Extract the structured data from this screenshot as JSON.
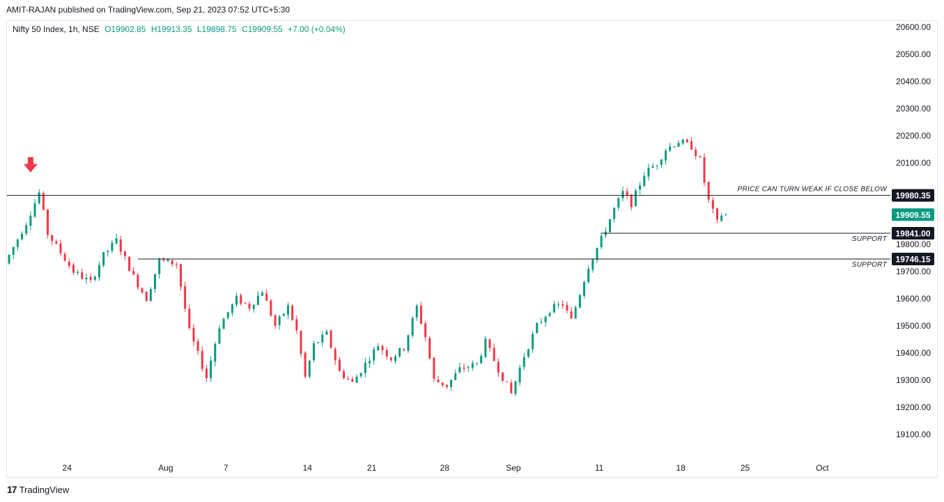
{
  "credit": "AMIT-RAJAN published on TradingView.com, Sep 21, 2023 07:52 UTC+5:30",
  "legend": {
    "symbol": "Nifty 50 Index, 1h, NSE",
    "open": "O19902.85",
    "high": "H19913.35",
    "low": "L19898.75",
    "close": "C19909.55",
    "change": "+7.00 (+0.04%)"
  },
  "brand": "TradingView",
  "colors": {
    "up": "#089981",
    "down": "#f23645",
    "line": "#131722",
    "arrow": "#f23645"
  },
  "chart_data": {
    "type": "candlestick",
    "title": "Nifty 50 Index, 1h, NSE",
    "y_ticks": [
      19100,
      19200,
      19300,
      19400,
      19500,
      19600,
      19700,
      19800,
      19900,
      20000,
      20100,
      20200,
      20300,
      20400,
      20500,
      20600
    ],
    "y_tick_labels": [
      "19100.00",
      "19200.00",
      "19300.00",
      "19400.00",
      "19500.00",
      "19600.00",
      "19700.00",
      "19800.00",
      "19900.00",
      "20000.00",
      "20100.00",
      "20200.00",
      "20300.00",
      "20400.00",
      "20500.00",
      "20600.00"
    ],
    "ylim": [
      19000,
      20640
    ],
    "x_labels": [
      "24",
      "Aug",
      "7",
      "14",
      "21",
      "28",
      "Sep",
      "11",
      "18",
      "25",
      "Oct"
    ],
    "x_label_bars": [
      14,
      37,
      51,
      70,
      85,
      102,
      118,
      138,
      157,
      172,
      190
    ],
    "bar_count": 192,
    "price_path": [
      [
        0,
        19730
      ],
      [
        5,
        19880
      ],
      [
        8,
        19990
      ],
      [
        10,
        19840
      ],
      [
        16,
        19700
      ],
      [
        20,
        19660
      ],
      [
        23,
        19760
      ],
      [
        26,
        19815
      ],
      [
        30,
        19680
      ],
      [
        33,
        19600
      ],
      [
        36,
        19740
      ],
      [
        40,
        19730
      ],
      [
        43,
        19480
      ],
      [
        47,
        19310
      ],
      [
        50,
        19500
      ],
      [
        54,
        19600
      ],
      [
        57,
        19570
      ],
      [
        60,
        19630
      ],
      [
        63,
        19500
      ],
      [
        66,
        19570
      ],
      [
        68,
        19480
      ],
      [
        70,
        19310
      ],
      [
        72,
        19430
      ],
      [
        75,
        19470
      ],
      [
        78,
        19330
      ],
      [
        81,
        19290
      ],
      [
        84,
        19360
      ],
      [
        87,
        19430
      ],
      [
        90,
        19380
      ],
      [
        93,
        19420
      ],
      [
        96,
        19570
      ],
      [
        98,
        19460
      ],
      [
        100,
        19300
      ],
      [
        103,
        19280
      ],
      [
        106,
        19340
      ],
      [
        110,
        19360
      ],
      [
        112,
        19440
      ],
      [
        115,
        19340
      ],
      [
        118,
        19250
      ],
      [
        121,
        19390
      ],
      [
        124,
        19500
      ],
      [
        127,
        19560
      ],
      [
        130,
        19580
      ],
      [
        132,
        19520
      ],
      [
        134,
        19620
      ],
      [
        136,
        19720
      ],
      [
        139,
        19820
      ],
      [
        142,
        19930
      ],
      [
        144,
        19990
      ],
      [
        146,
        19950
      ],
      [
        149,
        20060
      ],
      [
        152,
        20100
      ],
      [
        154,
        20150
      ],
      [
        157,
        20180
      ],
      [
        160,
        20160
      ],
      [
        162,
        20110
      ],
      [
        163,
        20030
      ],
      [
        164,
        19960
      ],
      [
        166,
        19880
      ],
      [
        167,
        19910
      ]
    ],
    "levels": [
      {
        "value": 19980.35,
        "label": "19980.35",
        "note": "PRICE CAN TURN WEAK IF CLOSE BELOW"
      },
      {
        "value": 19841.0,
        "label": "19841.00",
        "note": "SUPPORT"
      },
      {
        "value": 19746.15,
        "label": "19746.15",
        "note": "SUPPORT"
      }
    ],
    "last_price": {
      "value": 19909.55,
      "label": "19909.55"
    },
    "marker": {
      "type": "down-arrow",
      "bar": 5,
      "value": 20065
    }
  }
}
